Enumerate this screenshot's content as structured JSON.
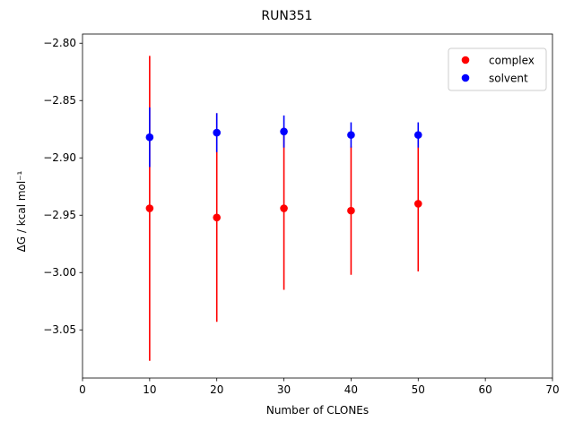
{
  "chart_data": {
    "type": "scatter",
    "title": "RUN351",
    "xlabel": "Number of CLONEs",
    "ylabel": "ΔG / kcal mol⁻¹",
    "xlim": [
      0,
      70
    ],
    "ylim": [
      -3.092,
      -2.792
    ],
    "xticks": [
      0,
      10,
      20,
      30,
      40,
      50,
      60,
      70
    ],
    "yticks": [
      -2.8,
      -2.85,
      -2.9,
      -2.95,
      -3.0,
      -3.05
    ],
    "xtick_labels": [
      "0",
      "10",
      "20",
      "30",
      "40",
      "50",
      "60",
      "70"
    ],
    "ytick_labels": [
      "−2.80",
      "−2.85",
      "−2.90",
      "−2.95",
      "−3.00",
      "−3.05"
    ],
    "legend_position": "top-right",
    "grid": false,
    "series": [
      {
        "name": "complex",
        "color": "#ff0000",
        "x": [
          10,
          20,
          30,
          40,
          50
        ],
        "y": [
          -2.944,
          -2.952,
          -2.944,
          -2.946,
          -2.94
        ],
        "err": [
          0.133,
          0.091,
          0.071,
          0.056,
          0.059
        ]
      },
      {
        "name": "solvent",
        "color": "#0000ff",
        "x": [
          10,
          20,
          30,
          40,
          50
        ],
        "y": [
          -2.882,
          -2.878,
          -2.877,
          -2.88,
          -2.88
        ],
        "err": [
          0.026,
          0.017,
          0.014,
          0.011,
          0.011
        ]
      }
    ]
  }
}
